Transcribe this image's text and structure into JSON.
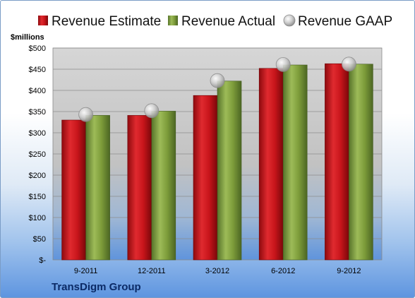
{
  "chart_data": {
    "type": "bar",
    "ylabel": "$millions",
    "ylim": [
      0,
      500
    ],
    "yticks": [
      "$-",
      "$50",
      "$100",
      "$150",
      "$200",
      "$250",
      "$300",
      "$350",
      "$400",
      "$450",
      "$500"
    ],
    "categories": [
      "9-2011",
      "12-2011",
      "3-2012",
      "6-2012",
      "9-2012"
    ],
    "series": [
      {
        "name": "Revenue Estimate",
        "kind": "bar",
        "color": "#c8151b",
        "values": [
          330,
          341,
          388,
          452,
          463
        ]
      },
      {
        "name": "Revenue Actual",
        "kind": "bar",
        "color": "#7d9c3a",
        "values": [
          341,
          351,
          422,
          460,
          462
        ]
      },
      {
        "name": "Revenue GAAP",
        "kind": "marker",
        "color": "#b4b4b4",
        "values": [
          343,
          352,
          423,
          461,
          462
        ]
      }
    ],
    "legend_position": "top",
    "grid": true
  },
  "footer": {
    "company": "TransDigm Group"
  }
}
